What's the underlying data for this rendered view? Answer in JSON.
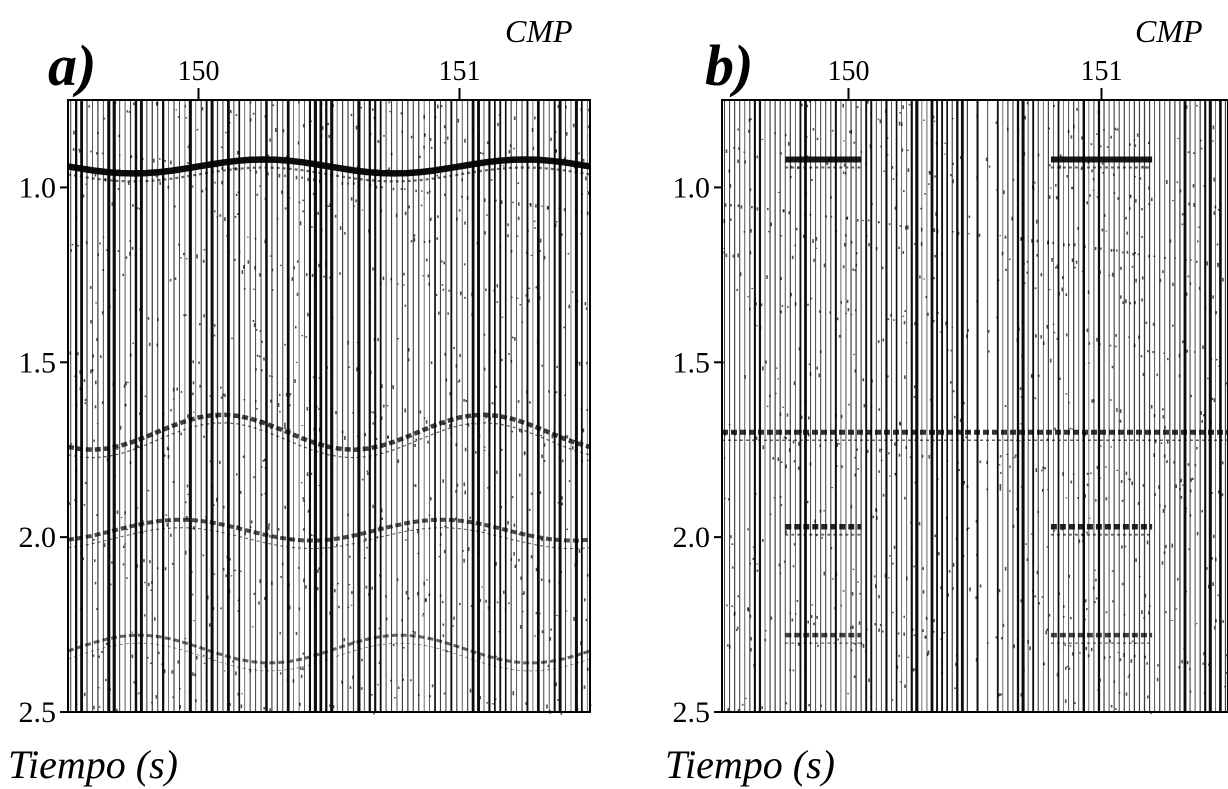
{
  "chart_data": [
    {
      "type": "seismic-section",
      "panel_label": "a)",
      "top_axis_title": "CMP",
      "top_ticks": [
        {
          "label": "150",
          "value": 150
        },
        {
          "label": "151",
          "value": 151
        }
      ],
      "x_range": [
        149.5,
        151.5
      ],
      "y_axis_title": "Tiempo (s)",
      "y_ticks": [
        {
          "label": "1.0",
          "value": 1.0
        },
        {
          "label": "1.5",
          "value": 1.5
        },
        {
          "label": "2.0",
          "value": 2.0
        },
        {
          "label": "2.5",
          "value": 2.5
        }
      ],
      "y_range": [
        0.75,
        2.5
      ],
      "y_inverted": true,
      "reflectors": [
        {
          "t": 0.94,
          "strength": 1.0,
          "undulation": 0.02,
          "x_start": 149.5,
          "x_end": 151.5
        },
        {
          "t": 1.7,
          "strength": 0.6,
          "undulation": 0.05,
          "x_start": 149.5,
          "x_end": 151.5
        },
        {
          "t": 1.98,
          "strength": 0.5,
          "undulation": 0.03,
          "x_start": 149.5,
          "x_end": 151.5
        },
        {
          "t": 2.32,
          "strength": 0.3,
          "undulation": 0.04,
          "x_start": 149.5,
          "x_end": 151.5
        }
      ]
    },
    {
      "type": "seismic-section",
      "panel_label": "b)",
      "top_axis_title": "CMP",
      "top_ticks": [
        {
          "label": "150",
          "value": 150
        },
        {
          "label": "151",
          "value": 151
        }
      ],
      "x_range": [
        149.5,
        151.5
      ],
      "y_axis_title": "Tiempo (s)",
      "y_ticks": [
        {
          "label": "1.0",
          "value": 1.0
        },
        {
          "label": "1.5",
          "value": 1.5
        },
        {
          "label": "2.0",
          "value": 2.0
        },
        {
          "label": "2.5",
          "value": 2.5
        }
      ],
      "y_range": [
        0.75,
        2.5
      ],
      "y_inverted": true,
      "reflectors": [
        {
          "t": 0.92,
          "strength": 0.9,
          "undulation": 0.0,
          "x_start": 149.75,
          "x_end": 150.05
        },
        {
          "t": 0.92,
          "strength": 0.9,
          "undulation": 0.0,
          "x_start": 150.8,
          "x_end": 151.2
        },
        {
          "t": 1.7,
          "strength": 0.7,
          "undulation": 0.0,
          "x_start": 149.5,
          "x_end": 151.5
        },
        {
          "t": 1.97,
          "strength": 0.8,
          "undulation": 0.0,
          "x_start": 149.75,
          "x_end": 150.05
        },
        {
          "t": 1.97,
          "strength": 0.8,
          "undulation": 0.0,
          "x_start": 150.8,
          "x_end": 151.2
        },
        {
          "t": 2.28,
          "strength": 0.6,
          "undulation": 0.0,
          "x_start": 149.75,
          "x_end": 150.05
        },
        {
          "t": 2.28,
          "strength": 0.6,
          "undulation": 0.0,
          "x_start": 150.8,
          "x_end": 151.2
        }
      ]
    }
  ]
}
